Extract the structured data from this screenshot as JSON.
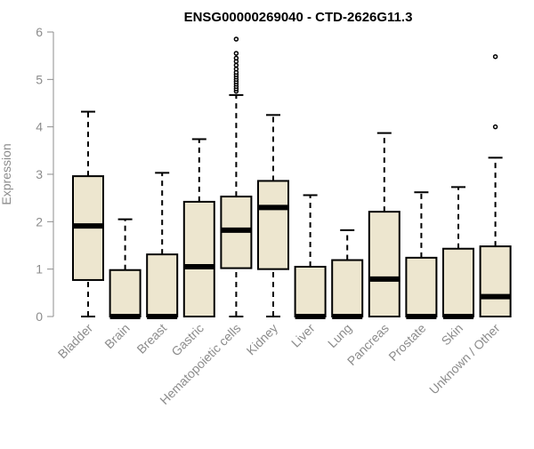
{
  "chart_data": {
    "type": "box",
    "title": "ENSG00000269040 - CTD-2626G11.3",
    "xlabel": "",
    "ylabel": "Expression",
    "ylim": [
      0,
      6
    ],
    "yticks": [
      0,
      1,
      2,
      3,
      4,
      5,
      6
    ],
    "categories": [
      "Bladder",
      "Brain",
      "Breast",
      "Gastric",
      "Hematopoietic cells",
      "Kidney",
      "Liver",
      "Lung",
      "Pancreas",
      "Prostate",
      "Skin",
      "Unknown / Other"
    ],
    "boxes": [
      {
        "category": "Bladder",
        "whisker_low": 0,
        "q1": 0.77,
        "median": 1.91,
        "q3": 2.96,
        "whisker_high": 4.32,
        "outliers": []
      },
      {
        "category": "Brain",
        "whisker_low": 0,
        "q1": 0,
        "median": 0,
        "q3": 0.98,
        "whisker_high": 2.05,
        "outliers": []
      },
      {
        "category": "Breast",
        "whisker_low": 0,
        "q1": 0,
        "median": 0,
        "q3": 1.31,
        "whisker_high": 3.03,
        "outliers": []
      },
      {
        "category": "Gastric",
        "whisker_low": 0,
        "q1": 0,
        "median": 1.05,
        "q3": 2.42,
        "whisker_high": 3.74,
        "outliers": []
      },
      {
        "category": "Hematopoietic cells",
        "whisker_low": 0,
        "q1": 1.02,
        "median": 1.82,
        "q3": 2.53,
        "whisker_high": 4.67,
        "outliers": [
          4.75,
          4.8,
          4.85,
          4.9,
          4.95,
          5.0,
          5.05,
          5.1,
          5.15,
          5.22,
          5.3,
          5.38,
          5.45,
          5.55,
          5.85
        ]
      },
      {
        "category": "Kidney",
        "whisker_low": 0,
        "q1": 1.0,
        "median": 2.3,
        "q3": 2.86,
        "whisker_high": 4.25,
        "outliers": []
      },
      {
        "category": "Liver",
        "whisker_low": 0,
        "q1": 0,
        "median": 0,
        "q3": 1.05,
        "whisker_high": 2.56,
        "outliers": []
      },
      {
        "category": "Lung",
        "whisker_low": 0,
        "q1": 0,
        "median": 0,
        "q3": 1.19,
        "whisker_high": 1.82,
        "outliers": []
      },
      {
        "category": "Pancreas",
        "whisker_low": 0,
        "q1": 0,
        "median": 0.79,
        "q3": 2.21,
        "whisker_high": 3.87,
        "outliers": []
      },
      {
        "category": "Prostate",
        "whisker_low": 0,
        "q1": 0,
        "median": 0,
        "q3": 1.24,
        "whisker_high": 2.62,
        "outliers": []
      },
      {
        "category": "Skin",
        "whisker_low": 0,
        "q1": 0,
        "median": 0,
        "q3": 1.43,
        "whisker_high": 2.73,
        "outliers": []
      },
      {
        "category": "Unknown / Other",
        "whisker_low": 0,
        "q1": 0,
        "median": 0.42,
        "q3": 1.48,
        "whisker_high": 3.35,
        "outliers": [
          4.0,
          5.48
        ]
      }
    ],
    "box_fill": "#ede6cf",
    "box_stroke": "#000000",
    "axis_color": "#8c8c8c",
    "grid": false,
    "legend": "none"
  }
}
